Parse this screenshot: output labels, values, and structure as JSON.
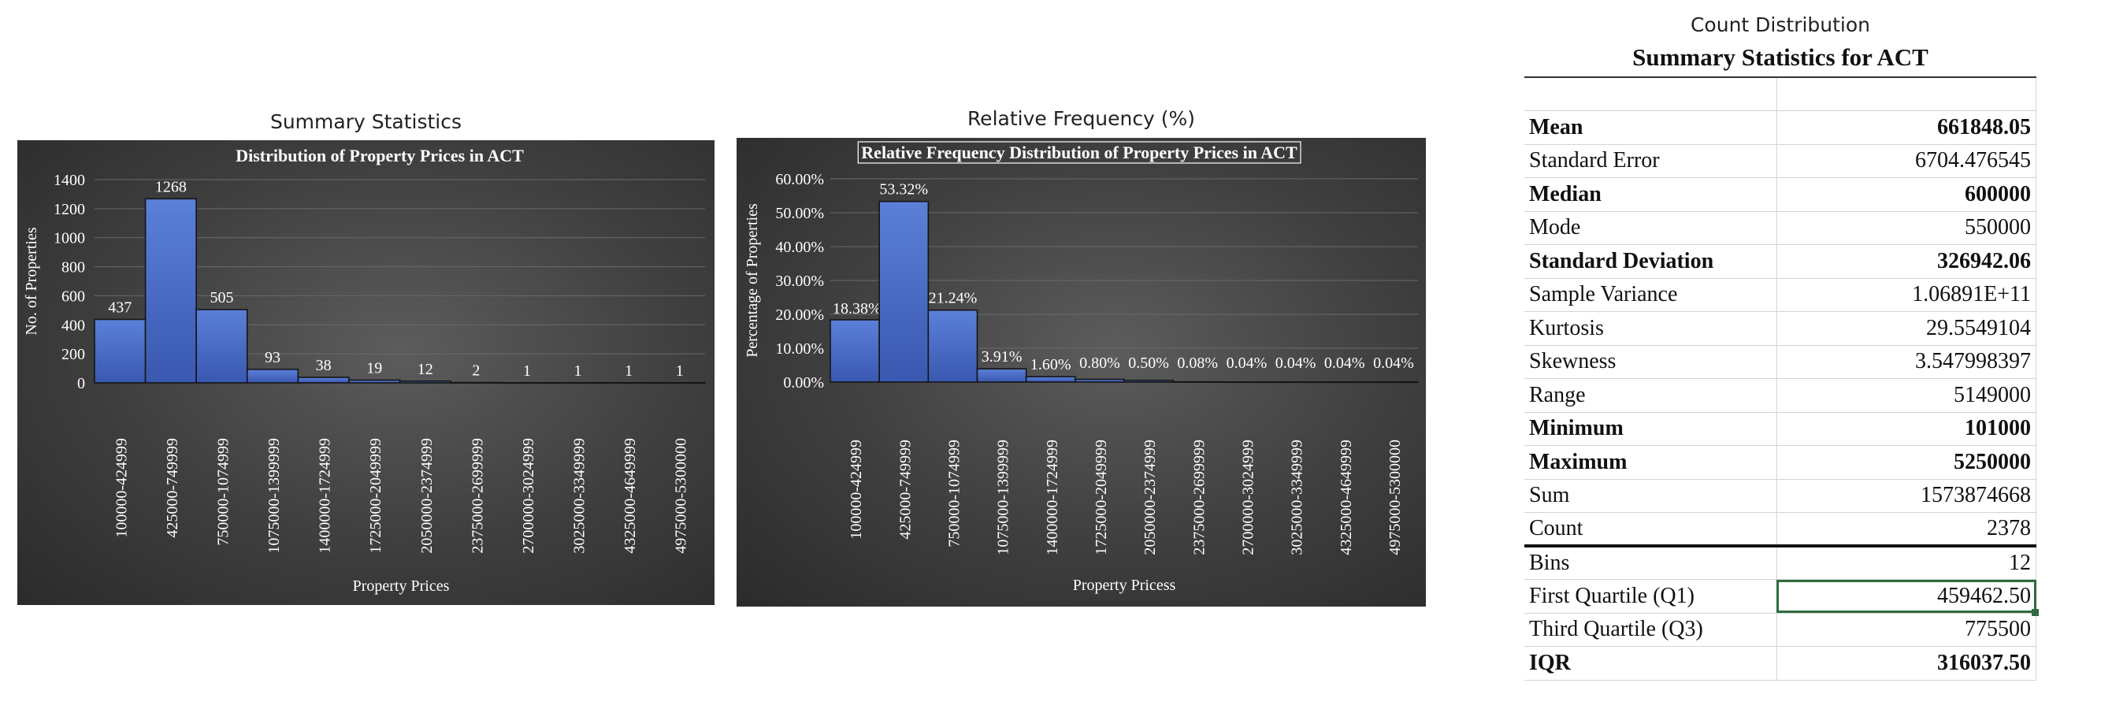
{
  "captions": {
    "left": "Summary Statistics",
    "middle": "Relative Frequency (%)",
    "right": "Count Distribution"
  },
  "chart_data": [
    {
      "type": "bar",
      "title": "Distribution of Property Prices in ACT",
      "xlabel": "Property Prices",
      "ylabel": "No. of Properties",
      "ylim": [
        0,
        1400
      ],
      "yticks": [
        "0",
        "200",
        "400",
        "600",
        "800",
        "1000",
        "1200",
        "1400"
      ],
      "categories": [
        "100000-424999",
        "425000-749999",
        "750000-1074999",
        "1075000-1399999",
        "1400000-1724999",
        "1725000-2049999",
        "2050000-2374999",
        "2375000-2699999",
        "2700000-3024999",
        "3025000-3349999",
        "4325000-4649999",
        "4975000-5300000"
      ],
      "values": [
        437,
        1268,
        505,
        93,
        38,
        19,
        12,
        2,
        1,
        1,
        1,
        1
      ],
      "labels": [
        "437",
        "1268",
        "505",
        "93",
        "38",
        "19",
        "12",
        "2",
        "1",
        "1",
        "1",
        "1"
      ],
      "bar_color": "#4a6cc8"
    },
    {
      "type": "bar",
      "title": "Relative Frequency Distribution of Property Prices in ACT",
      "xlabel": "Property Pricess",
      "ylabel": "Percentage of Properties",
      "ylim": [
        0,
        60
      ],
      "yticks": [
        "0.00%",
        "10.00%",
        "20.00%",
        "30.00%",
        "40.00%",
        "50.00%",
        "60.00%"
      ],
      "categories": [
        "100000-424999",
        "425000-749999",
        "750000-1074999",
        "1075000-1399999",
        "1400000-1724999",
        "1725000-2049999",
        "2050000-2374999",
        "2375000-2699999",
        "2700000-3024999",
        "3025000-3349999",
        "4325000-4649999",
        "4975000-5300000"
      ],
      "values": [
        18.38,
        53.32,
        21.24,
        3.91,
        1.6,
        0.8,
        0.5,
        0.08,
        0.04,
        0.04,
        0.04,
        0.04
      ],
      "labels": [
        "18.38%",
        "53.32%",
        "21.24%",
        "3.91%",
        "1.60%",
        "0.80%",
        "0.50%",
        "0.08%",
        "0.04%",
        "0.04%",
        "0.04%",
        "0.04%"
      ],
      "bar_color": "#4a6cc8"
    },
    {
      "type": "table",
      "title": "Summary Statistics for ACT",
      "rows": [
        {
          "label": "",
          "value": "",
          "bold": false
        },
        {
          "label": "Mean",
          "value": "661848.05",
          "bold": true
        },
        {
          "label": "Standard Error",
          "value": "6704.476545",
          "bold": false
        },
        {
          "label": "Median",
          "value": "600000",
          "bold": true
        },
        {
          "label": "Mode",
          "value": "550000",
          "bold": false
        },
        {
          "label": "Standard Deviation",
          "value": "326942.06",
          "bold": true
        },
        {
          "label": "Sample Variance",
          "value": "1.06891E+11",
          "bold": false
        },
        {
          "label": "Kurtosis",
          "value": "29.5549104",
          "bold": false
        },
        {
          "label": "Skewness",
          "value": "3.547998397",
          "bold": false
        },
        {
          "label": "Range",
          "value": "5149000",
          "bold": false
        },
        {
          "label": "Minimum",
          "value": "101000",
          "bold": true
        },
        {
          "label": "Maximum",
          "value": "5250000",
          "bold": true
        },
        {
          "label": "Sum",
          "value": "1573874668",
          "bold": false
        },
        {
          "label": "Count",
          "value": "2378",
          "bold": false
        },
        {
          "label": "Bins",
          "value": "12",
          "bold": false
        },
        {
          "label": "First Quartile (Q1)",
          "value": "459462.50",
          "bold": false
        },
        {
          "label": "Third Quartile (Q3)",
          "value": "775500",
          "bold": false
        },
        {
          "label": "IQR",
          "value": "316037.50",
          "bold": true
        }
      ]
    }
  ]
}
